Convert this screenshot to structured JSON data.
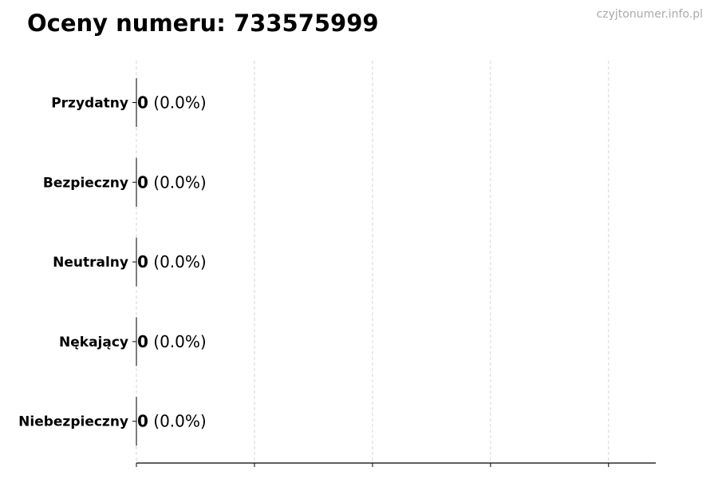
{
  "header": {
    "title": "Oceny numeru: 733575999",
    "watermark": "czyjtonumer.info.pl"
  },
  "chart_data": {
    "type": "bar",
    "orientation": "horizontal",
    "title": "Oceny numeru: 733575999",
    "xlabel": "",
    "ylabel": "",
    "categories": [
      "Przydatny",
      "Bezpieczny",
      "Neutralny",
      "Nękający",
      "Niebezpieczny"
    ],
    "values": [
      0,
      0,
      0,
      0,
      0
    ],
    "data_labels": [
      {
        "count": "0",
        "percent": "(0.0%)"
      },
      {
        "count": "0",
        "percent": "(0.0%)"
      },
      {
        "count": "0",
        "percent": "(0.0%)"
      },
      {
        "count": "0",
        "percent": "(0.0%)"
      },
      {
        "count": "0",
        "percent": "(0.0%)"
      }
    ],
    "xlim": [
      0,
      4.4
    ],
    "x_ticks": [
      0,
      1,
      2,
      3,
      4
    ],
    "x_tick_labels_shown": false,
    "grid": "x, dashed",
    "legend": "none",
    "colors": {
      "bar_edge": "#000000",
      "grid": "#cccccc"
    }
  }
}
